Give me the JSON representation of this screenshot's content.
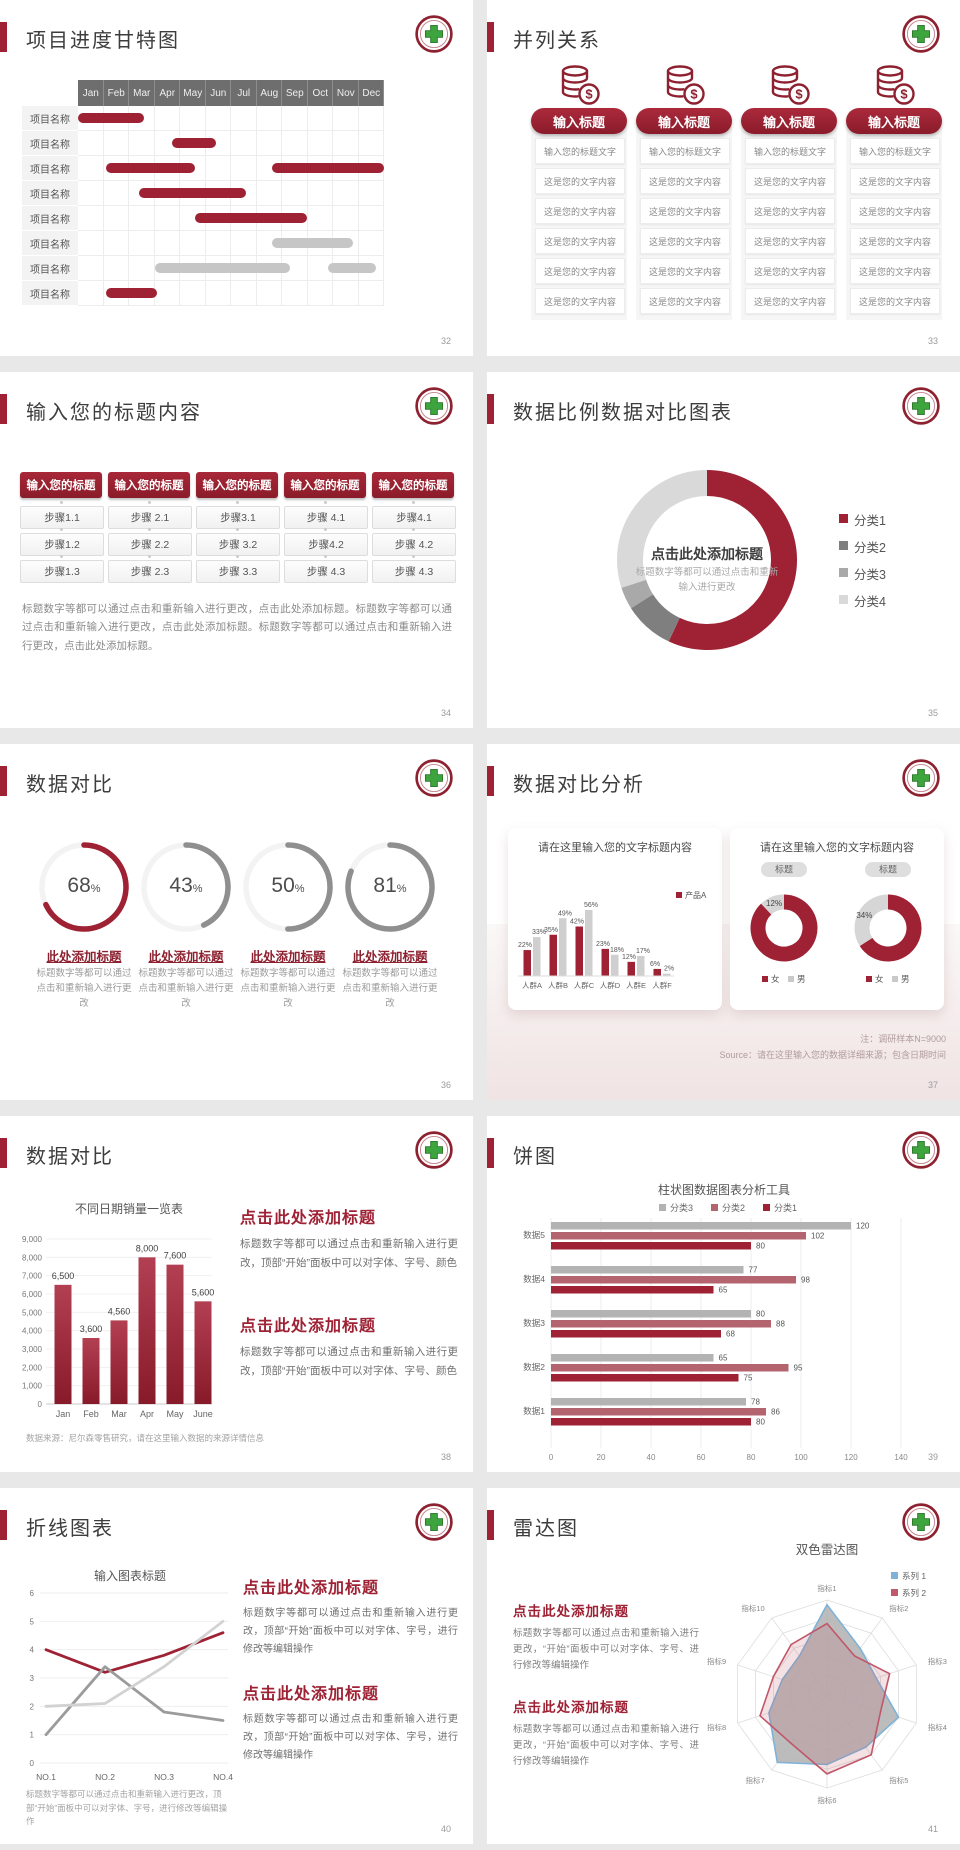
{
  "colors": {
    "accent": "#9e2134",
    "accent_dark": "#8a1b2a",
    "bar_gray": "#c6c6c6",
    "soft_red": "#b4646f",
    "light_gray": "#b3b3b3",
    "blue": "#7fb2d8",
    "red_line": "#c0576a"
  },
  "slides": [
    {
      "title": "项目进度甘特图",
      "page": "32",
      "gantt": {
        "months": [
          "Jan",
          "Feb",
          "Mar",
          "Apr",
          "May",
          "Jun",
          "Jul",
          "Aug",
          "Sep",
          "Oct",
          "Nov",
          "Dec"
        ],
        "row_label": "项目名称",
        "rows": [
          [
            {
              "s": 1.0,
              "e": 3.6,
              "c": "red"
            }
          ],
          [
            {
              "s": 4.7,
              "e": 6.4,
              "c": "red"
            }
          ],
          [
            {
              "s": 2.1,
              "e": 5.6,
              "c": "red"
            },
            {
              "s": 8.6,
              "e": 13,
              "c": "red"
            }
          ],
          [
            {
              "s": 3.4,
              "e": 7.6,
              "c": "red"
            }
          ],
          [
            {
              "s": 5.6,
              "e": 10.0,
              "c": "red"
            }
          ],
          [
            {
              "s": 8.6,
              "e": 11.8,
              "c": "gray"
            }
          ],
          [
            {
              "s": 4.0,
              "e": 9.3,
              "c": "gray"
            },
            {
              "s": 10.8,
              "e": 12.7,
              "c": "gray"
            }
          ],
          [
            {
              "s": 2.1,
              "e": 4.1,
              "c": "red"
            }
          ]
        ]
      }
    },
    {
      "title": "并列关系",
      "page": "33",
      "columns": {
        "pill": "输入标题",
        "header": "输入您的标题文字",
        "row": "这是您的文字内容",
        "rows_per_col": 5,
        "icon": "coins-dollar-icon"
      }
    },
    {
      "title": "输入您的标题内容",
      "page": "34",
      "steps": {
        "header": "输入您的标题",
        "cols": [
          [
            "步骤1.1",
            "步骤1.2",
            "步骤1.3"
          ],
          [
            "步骤 2.1",
            "步骤 2.2",
            "步骤 2.3"
          ],
          [
            "步骤3.1",
            "步骤 3.2",
            "步骤 3.3"
          ],
          [
            "步骤 4.1",
            "步骤4.2",
            "步骤 4.3"
          ],
          [
            "步骤4.1",
            "步骤 4.2",
            "步骤 4.3"
          ]
        ],
        "paragraph": "标题数字等都可以通过点击和重新输入进行更改，点击此处添加标题。标题数字等都可以通过点击和重新输入进行更改，点击此处添加标题。标题数字等都可以通过点击和重新输入进行更改，点击此处添加标题。"
      }
    },
    {
      "title": "数据比例数据对比图表",
      "page": "35",
      "donut": {
        "center_title": "点击此处添加标题",
        "center_sub": "标题数字等都可以通过点击和重新输入进行更改",
        "segments": [
          {
            "value": 57,
            "color": "#9e2134"
          },
          {
            "value": 9,
            "color": "#7f7f7f"
          },
          {
            "value": 4,
            "color": "#a9a9a9"
          },
          {
            "value": 30,
            "color": "#d9d9d9"
          }
        ],
        "legend": [
          {
            "label": "分类1",
            "color": "#9e2134"
          },
          {
            "label": "分类2",
            "color": "#7f7f7f"
          },
          {
            "label": "分类3",
            "color": "#a9a9a9"
          },
          {
            "label": "分类4",
            "color": "#d9d9d9"
          }
        ]
      }
    },
    {
      "title": "数据对比",
      "page": "36",
      "rings": {
        "items": [
          {
            "pct": 68,
            "color": "#9e2134"
          },
          {
            "pct": 43,
            "color": "#8f8f8f"
          },
          {
            "pct": 50,
            "color": "#8f8f8f"
          },
          {
            "pct": 81,
            "color": "#8f8f8f"
          }
        ],
        "label": "此处添加标题",
        "text": "标题数字等都可以通过点击和重新输入进行更改"
      }
    },
    {
      "title": "数据对比分析",
      "page": "37",
      "card1": {
        "title": "请在这里输入您的文字标题内容",
        "legend": "产品A",
        "categories": [
          "人群A",
          "人群B",
          "人群C",
          "人群D",
          "人群E",
          "人群F"
        ],
        "series_a": [
          22,
          35,
          42,
          23,
          12,
          6
        ],
        "series_b": [
          33,
          49,
          56,
          18,
          17,
          2
        ]
      },
      "card2": {
        "title": "请在这里输入您的文字标题内容",
        "pill": "标题",
        "donuts": [
          {
            "gray_pct": 12
          },
          {
            "gray_pct": 34
          }
        ],
        "legend_f": "女",
        "legend_m": "男"
      },
      "note1": "注：调研样本N=9000",
      "note2": "Source：请在这里输入您的数据详细来源；包含日期时间"
    },
    {
      "title": "数据对比",
      "page": "38",
      "chart": {
        "title": "不同日期销量一览表",
        "categories": [
          "Jan",
          "Feb",
          "Mar",
          "Apr",
          "May",
          "June"
        ],
        "values": [
          6500,
          3600,
          4560,
          8000,
          7600,
          5600
        ],
        "labels": [
          "6,500",
          "3,600",
          "4,560",
          "8,000",
          "7,600",
          "5,600"
        ],
        "yticks": [
          "9,000",
          "8,000",
          "7,000",
          "6,000",
          "5,000",
          "4,000",
          "3,000",
          "2,000",
          "1,000",
          "0"
        ],
        "ymax": 9000,
        "footnote": "数据来源：尼尔森零售研究，请在这里输入数据的来源详情信息"
      },
      "blocks": [
        {
          "h": "点击此处添加标题",
          "p": "标题数字等都可以通过点击和重新输入进行更改，顶部“开始”面板中可以对字体、字号、颜色"
        },
        {
          "h": "点击此处添加标题",
          "p": "标题数字等都可以通过点击和重新输入进行更改，顶部“开始”面板中可以对字体、字号、颜色"
        }
      ]
    },
    {
      "title": "饼图",
      "page": "39",
      "chart": {
        "title": "柱状图数据图表分析工具",
        "legend": [
          {
            "label": "分类3",
            "color": "#b3b3b3"
          },
          {
            "label": "分类2",
            "color": "#b4646f"
          },
          {
            "label": "分类1",
            "color": "#9e2134"
          }
        ],
        "categories": [
          "数据1",
          "数据2",
          "数据3",
          "数据4",
          "数据5"
        ],
        "series": [
          {
            "name": "分类1",
            "color": "#9e2134",
            "values": [
              80,
              75,
              68,
              65,
              80
            ]
          },
          {
            "name": "分类2",
            "color": "#b4646f",
            "values": [
              86,
              95,
              88,
              98,
              102
            ]
          },
          {
            "name": "分类3",
            "color": "#b3b3b3",
            "values": [
              78,
              65,
              80,
              77,
              120
            ]
          }
        ],
        "xticks": [
          "0",
          "20",
          "40",
          "60",
          "80",
          "100",
          "120",
          "140"
        ],
        "xmax": 140
      }
    },
    {
      "title": "折线图表",
      "page": "40",
      "chart": {
        "title": "输入图表标题",
        "x": [
          "NO.1",
          "NO.2",
          "NO.3",
          "NO.4"
        ],
        "ymax": 6,
        "yticks": [
          "6",
          "5",
          "4",
          "3",
          "2",
          "1",
          "0"
        ],
        "series": [
          {
            "color": "#9e2134",
            "values": [
              4,
              3.2,
              3.8,
              4.6
            ]
          },
          {
            "color": "#9b9b9b",
            "values": [
              1,
              3.4,
              1.8,
              1.5
            ]
          },
          {
            "color": "#d2d2d2",
            "values": [
              2,
              2.1,
              3.4,
              5
            ]
          }
        ]
      },
      "blocks": [
        {
          "h": "点击此处添加标题",
          "p": "标题数字等都可以通过点击和重新输入进行更改，顶部“开始”面板中可以对字体、字号，进行修改等编辑操作"
        },
        {
          "h": "点击此处添加标题",
          "p": "标题数字等都可以通过点击和重新输入进行更改，顶部“开始”面板中可以对字体、字号，进行修改等编辑操作"
        }
      ],
      "footnote": "标题数字等都可以通过点击和重新输入进行更改，顶部“开始”面板中可以对字体、字号，进行修改等编辑操作"
    },
    {
      "title": "雷达图",
      "page": "41",
      "radar": {
        "title": "双色雷达图",
        "axes": [
          "指标1",
          "指标2",
          "指标3",
          "指标4",
          "指标5",
          "指标6",
          "指标7",
          "指标8",
          "指标9",
          "指标10"
        ],
        "legend": [
          {
            "label": "系列 1",
            "color": "#7fb2d8"
          },
          {
            "label": "系列 2",
            "color": "#c0576a"
          }
        ],
        "series": [
          {
            "name": "系列 1",
            "color": "#7fb2d8",
            "values": [
              0.95,
              0.6,
              0.55,
              0.8,
              0.7,
              0.75,
              0.9,
              0.65,
              0.5,
              0.5
            ]
          },
          {
            "name": "系列 2",
            "color": "#c0576a",
            "values": [
              0.75,
              0.5,
              0.7,
              0.6,
              0.8,
              0.85,
              0.65,
              0.75,
              0.6,
              0.65
            ]
          }
        ]
      },
      "blocks": [
        {
          "h": "点击此处添加标题",
          "p": "标题数字等都可以通过点击和重新输入进行更改，“开始”面板中可以对字体、字号、进行修改等编辑操作"
        },
        {
          "h": "点击此处添加标题",
          "p": "标题数字等都可以通过点击和重新输入进行更改，“开始”面板中可以对字体、字号、进行修改等编辑操作"
        }
      ]
    }
  ]
}
